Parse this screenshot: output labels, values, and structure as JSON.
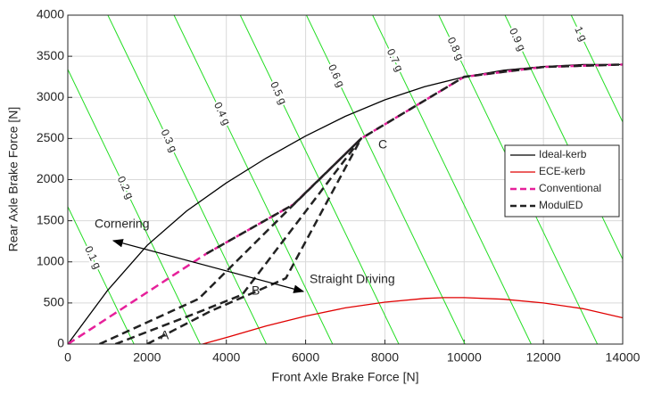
{
  "chart_data": {
    "type": "line",
    "xlabel": "Front Axle Brake Force [N]",
    "ylabel": "Rear Axle Brake Force [N]",
    "xlim": [
      0,
      14000
    ],
    "ylim": [
      0,
      4000
    ],
    "xticks": [
      0,
      2000,
      4000,
      6000,
      8000,
      10000,
      12000,
      14000
    ],
    "yticks": [
      0,
      500,
      1000,
      1500,
      2000,
      2500,
      3000,
      3500,
      4000
    ],
    "grid": true,
    "legend": "right",
    "series": [
      {
        "name": "Ideal-kerb",
        "color": "#000000",
        "style": "solid",
        "x": [
          0,
          1000,
          2000,
          3000,
          4000,
          5000,
          6000,
          7000,
          8000,
          9000,
          10000,
          11000,
          12000,
          13000,
          14000
        ],
        "values": [
          0,
          650,
          1200,
          1620,
          1960,
          2260,
          2530,
          2770,
          2970,
          3130,
          3250,
          3330,
          3375,
          3400,
          3400
        ]
      },
      {
        "name": "ECE-kerb",
        "color": "#e00000",
        "style": "solid",
        "x": [
          3400,
          4000,
          5000,
          6000,
          7000,
          8000,
          9000,
          9500,
          10000,
          11000,
          12000,
          13000,
          14000
        ],
        "values": [
          0,
          80,
          220,
          340,
          440,
          510,
          555,
          565,
          565,
          545,
          500,
          430,
          320
        ]
      },
      {
        "name": "Conventional",
        "color": "#e6209a",
        "style": "dashed",
        "x": [
          0,
          3500,
          5700,
          7400,
          10000,
          12000,
          14000
        ],
        "values": [
          0,
          1100,
          1700,
          2500,
          3250,
          3370,
          3400
        ]
      },
      {
        "name": "ModulED",
        "color": "#222222",
        "style": "dashed",
        "x": [
          3500,
          5700,
          7400,
          10000,
          12000,
          14000,
          null,
          800,
          3300,
          5600,
          7400,
          null,
          1200,
          3200,
          4400,
          7400,
          null,
          2000,
          3600,
          4800,
          5500,
          7400
        ],
        "values": [
          1100,
          1700,
          2500,
          3250,
          3370,
          3400,
          null,
          0,
          550,
          1650,
          2500,
          null,
          0,
          370,
          600,
          2500,
          null,
          0,
          400,
          650,
          800,
          2500
        ]
      }
    ],
    "decel_lines": [
      {
        "label": "0.1 g",
        "x": [
          0,
          1670
        ],
        "values": [
          1670,
          0
        ]
      },
      {
        "label": "0.2 g",
        "x": [
          0,
          3340
        ],
        "values": [
          3340,
          0
        ]
      },
      {
        "label": "0.3 g",
        "x": [
          0,
          5010
        ],
        "values": [
          5010,
          0
        ]
      },
      {
        "label": "0.4 g",
        "x": [
          0,
          6680
        ],
        "values": [
          6680,
          0
        ]
      },
      {
        "label": "0.5 g",
        "x": [
          0,
          8350
        ],
        "values": [
          8350,
          0
        ]
      },
      {
        "label": "0.6 g",
        "x": [
          0,
          10020
        ],
        "values": [
          10020,
          0
        ]
      },
      {
        "label": "0.7 g",
        "x": [
          0,
          11690
        ],
        "values": [
          11690,
          0
        ]
      },
      {
        "label": "0.8 g",
        "x": [
          0,
          13360
        ],
        "values": [
          13360,
          0
        ]
      },
      {
        "label": "0.9 g",
        "x": [
          0,
          15030
        ],
        "values": [
          15030,
          0
        ]
      },
      {
        "label": "1 g",
        "x": [
          0,
          16700
        ],
        "values": [
          16700,
          0
        ]
      }
    ],
    "decel_color": "#22dd22",
    "annotations": [
      "Cornering",
      "Straight Driving",
      "A",
      "B",
      "C"
    ]
  }
}
